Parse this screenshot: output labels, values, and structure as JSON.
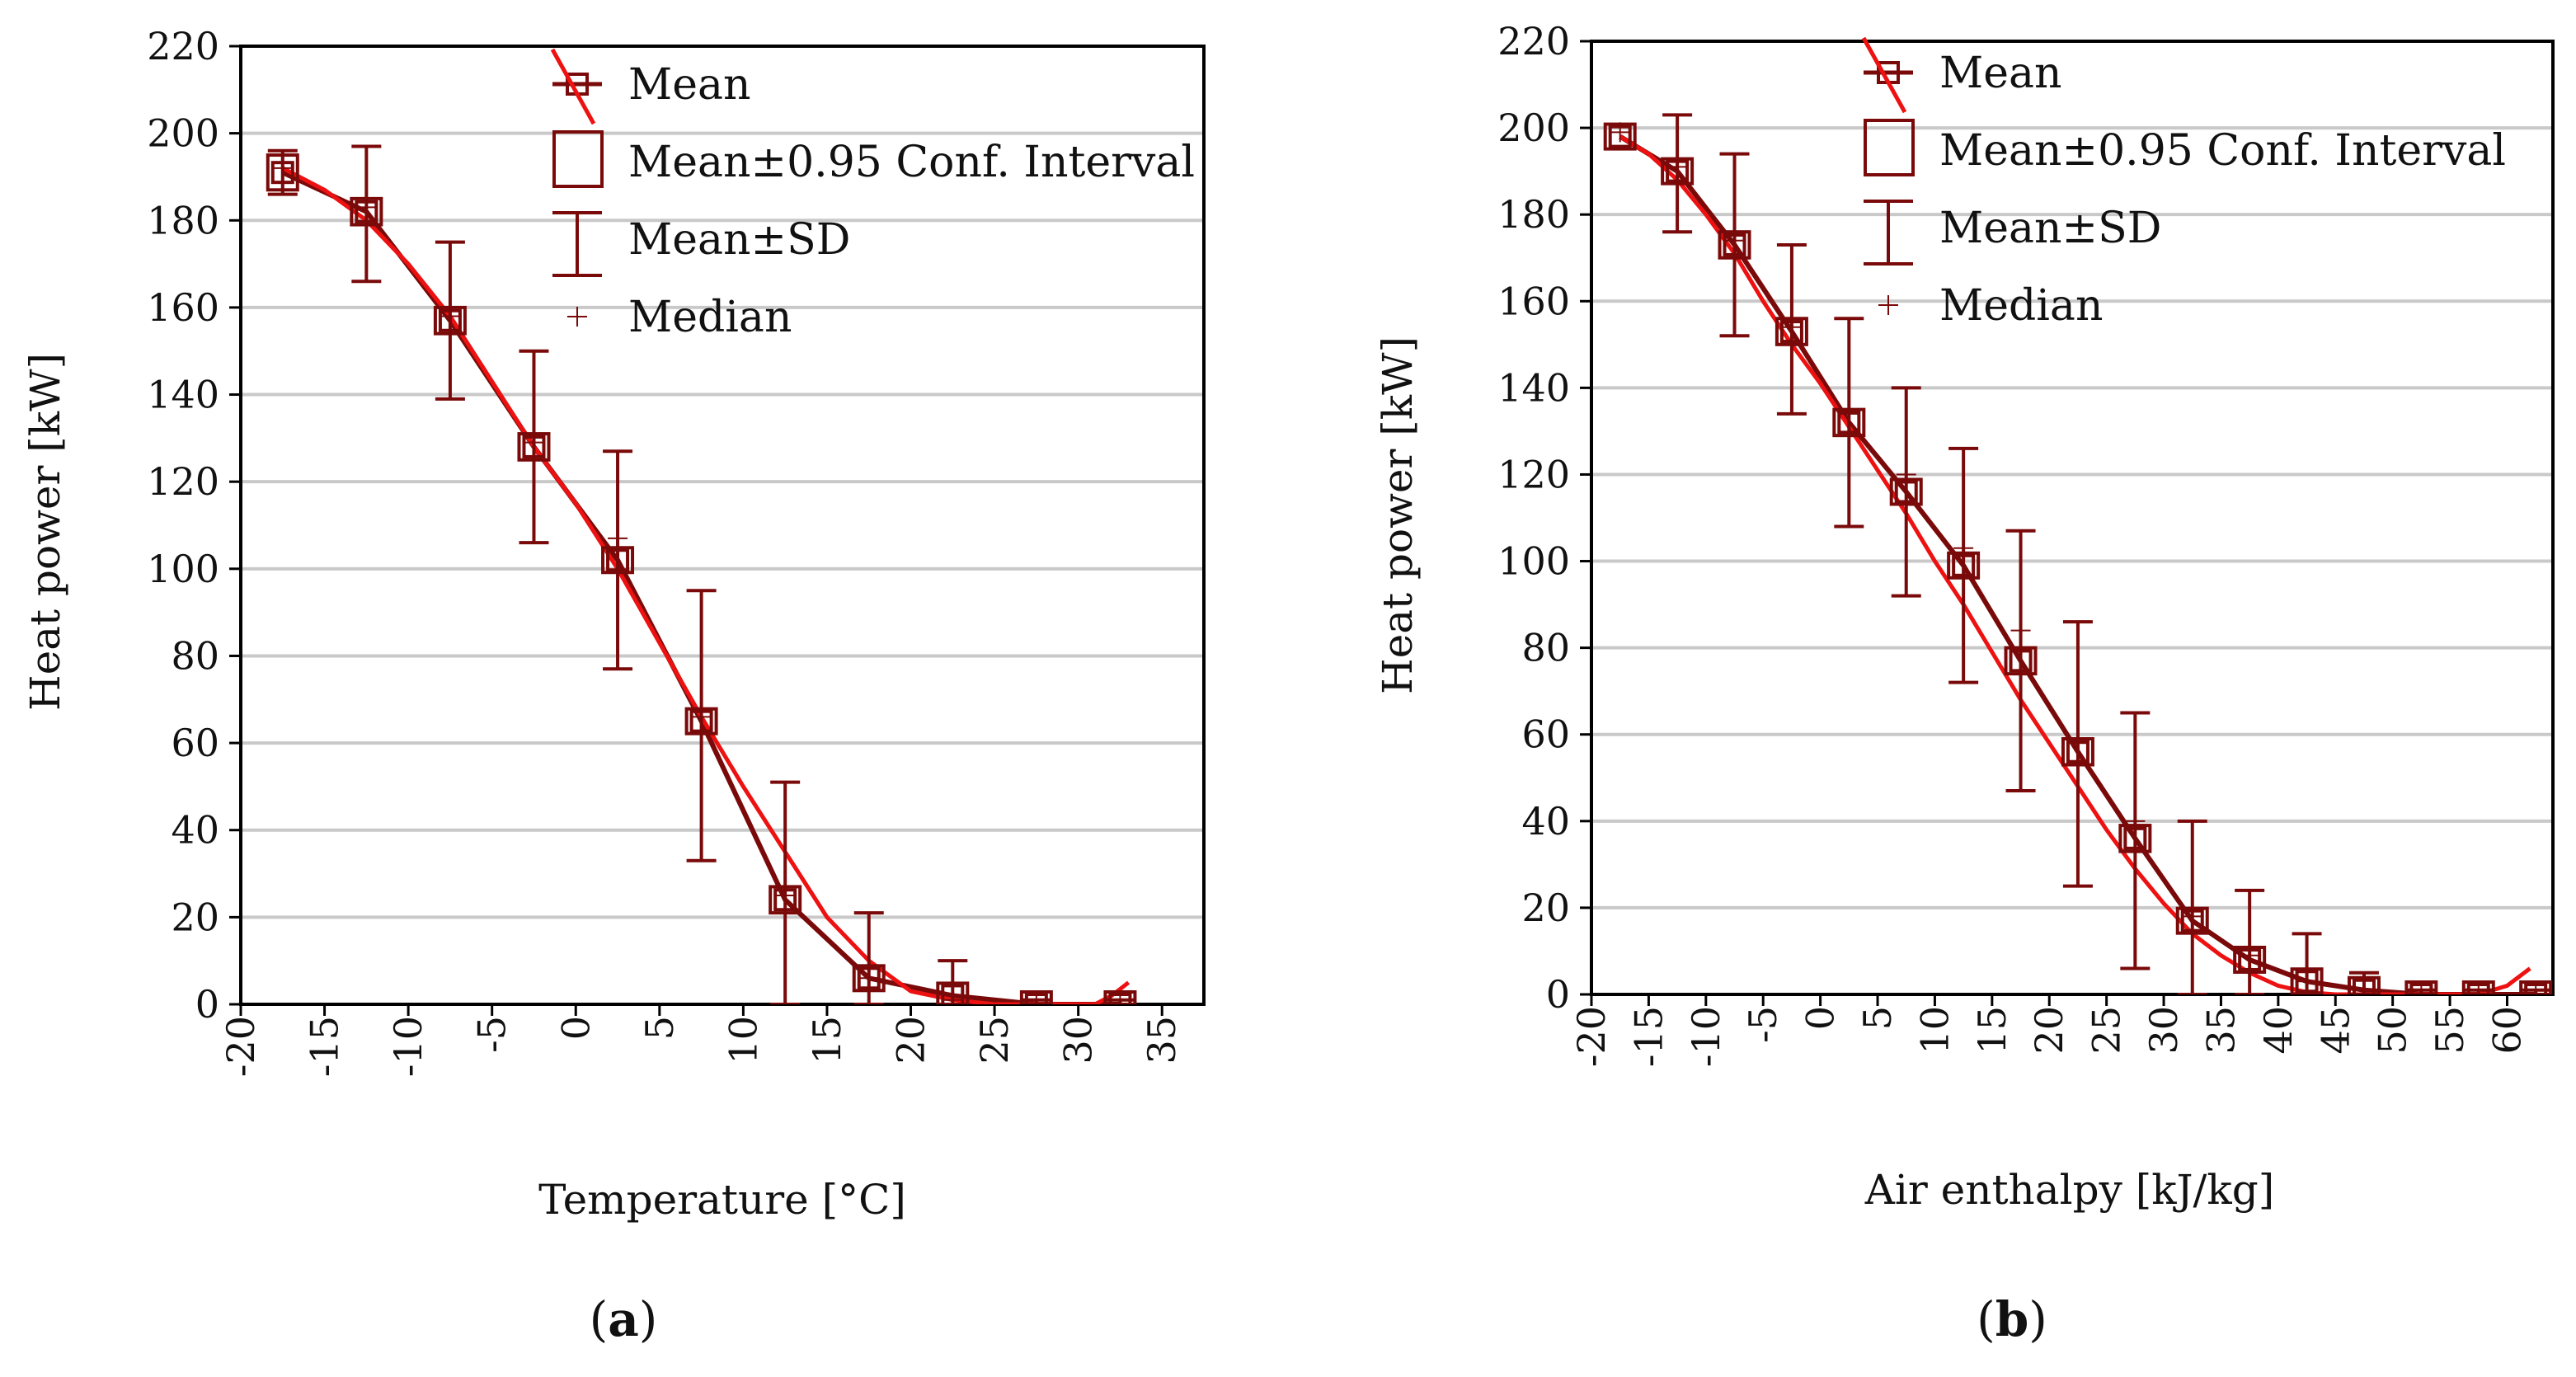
{
  "charts": [
    {
      "panel_label": "a",
      "chart_data": {
        "type": "line",
        "xlabel": "Temperature [°C]",
        "ylabel": "Heat power [kW]",
        "xlim": [
          -20,
          37.5
        ],
        "ylim": [
          0,
          220
        ],
        "x_ticks": [
          "-20",
          "-15",
          "-10",
          "-5",
          "0",
          "5",
          "10",
          "15",
          "20",
          "25",
          "30",
          "35"
        ],
        "y_ticks": [
          "0",
          "20",
          "40",
          "60",
          "80",
          "100",
          "120",
          "140",
          "160",
          "180",
          "200",
          "220"
        ],
        "grid": "horizontal",
        "legend_position": "top-right",
        "legend": [
          "Mean",
          "Mean±0.95 Conf. Interval",
          "Mean±SD",
          "Median"
        ],
        "series": [
          {
            "name": "Mean",
            "x": [
              -17.5,
              -12.5,
              -7.5,
              -2.5,
              2.5,
              7.5,
              12.5,
              17.5,
              22.5,
              27.5,
              32.5
            ],
            "values": [
              191,
              182,
              157,
              128,
              102,
              65,
              24,
              6,
              2,
              0,
              0
            ],
            "ci_low": [
              187,
              179,
              154,
              125,
              100,
              63,
              21,
              4,
              0,
              0,
              0
            ],
            "ci_high": [
              195,
              185,
              160,
              131,
              104,
              67,
              27,
              8,
              4,
              1,
              1
            ],
            "sd_low": [
              186,
              166,
              139,
              106,
              77,
              33,
              0,
              0,
              0,
              0,
              0
            ],
            "sd_high": [
              196,
              197,
              175,
              150,
              127,
              95,
              51,
              21,
              10,
              1,
              1
            ]
          },
          {
            "name": "Median",
            "x": [
              -17.5,
              -12.5,
              -7.5,
              -2.5,
              2.5,
              7.5,
              12.5,
              17.5,
              22.5,
              27.5,
              32.5
            ],
            "values": [
              192,
              183,
              158,
              129,
              107,
              66,
              25,
              6,
              1,
              0,
              0
            ]
          },
          {
            "name": "Fit",
            "x": [
              -17.5,
              -15,
              -12.5,
              -10,
              -7.5,
              -5,
              -2.5,
              0,
              2.5,
              5,
              7.5,
              10,
              12.5,
              15,
              17.5,
              20,
              22.5,
              25,
              27.5,
              30,
              31,
              32,
              33
            ],
            "values": [
              192,
              187,
              180,
              170,
              158,
              143,
              128,
              115,
              100,
              83,
              66,
              50,
              35,
              20,
              10,
              3,
              1,
              0,
              0,
              0,
              0,
              2,
              5
            ]
          }
        ]
      }
    },
    {
      "panel_label": "b",
      "chart_data": {
        "type": "line",
        "xlabel": "Air enthalpy [kJ/kg]",
        "ylabel": "Heat power [kW]",
        "xlim": [
          -20,
          64
        ],
        "ylim": [
          0,
          220
        ],
        "x_ticks": [
          "-20",
          "-15",
          "-10",
          "-5",
          "0",
          "5",
          "10",
          "15",
          "20",
          "25",
          "30",
          "35",
          "40",
          "45",
          "50",
          "55",
          "60"
        ],
        "y_ticks": [
          "0",
          "20",
          "40",
          "60",
          "80",
          "100",
          "120",
          "140",
          "160",
          "180",
          "200",
          "220"
        ],
        "grid": "horizontal",
        "legend_position": "top-right",
        "legend": [
          "Mean",
          "Mean±0.95 Conf. Interval",
          "Mean±SD",
          "Median"
        ],
        "series": [
          {
            "name": "Mean",
            "x": [
              -17.5,
              -12.5,
              -7.5,
              -2.5,
              2.5,
              7.5,
              12.5,
              17.5,
              22.5,
              27.5,
              32.5,
              37.5,
              42.5,
              47.5,
              52.5,
              57.5,
              62.5
            ],
            "values": [
              198,
              190,
              173,
              153,
              132,
              116,
              99,
              77,
              56,
              36,
              17,
              8,
              3,
              1,
              0,
              0,
              0
            ],
            "ci_low": [
              196,
              187,
              170,
              150,
              129,
              114,
              97,
              74,
              53,
              33,
              15,
              6,
              1,
              0,
              0,
              0,
              0
            ],
            "ci_high": [
              200,
              192,
              176,
              156,
              135,
              119,
              102,
              80,
              59,
              39,
              20,
              10,
              5,
              2,
              1,
              1,
              1
            ],
            "sd_low": [
              198,
              176,
              152,
              134,
              108,
              92,
              72,
              47,
              25,
              6,
              0,
              0,
              0,
              0,
              0,
              0,
              0
            ],
            "sd_high": [
              198,
              203,
              194,
              173,
              156,
              140,
              126,
              107,
              86,
              65,
              40,
              24,
              14,
              5,
              1,
              1,
              1
            ]
          },
          {
            "name": "Median",
            "x": [
              -17.5,
              -12.5,
              -7.5,
              -2.5,
              2.5,
              7.5,
              12.5,
              17.5,
              22.5,
              27.5,
              32.5,
              37.5,
              42.5,
              47.5,
              52.5,
              57.5,
              62.5
            ],
            "values": [
              199,
              191,
              174,
              154,
              134,
              120,
              103,
              84,
              58,
              40,
              18,
              9,
              3,
              1,
              0,
              0,
              0
            ]
          },
          {
            "name": "Fit",
            "x": [
              -17.5,
              -15,
              -12.5,
              -10,
              -7.5,
              -5,
              -2.5,
              0,
              2.5,
              5,
              7.5,
              10,
              12.5,
              15,
              17.5,
              20,
              22.5,
              25,
              27.5,
              30,
              32.5,
              35,
              37.5,
              40,
              42.5,
              45,
              47.5,
              50,
              52.5,
              55,
              57.5,
              60,
              62
            ],
            "values": [
              198,
              194,
              188,
              180,
              171,
              160,
              150,
              141,
              131,
              121,
              111,
              100,
              90,
              79,
              68,
              58,
              48,
              38,
              29,
              21,
              14,
              9,
              5,
              2,
              0.5,
              0,
              0,
              0,
              0,
              0,
              0,
              2,
              6
            ]
          }
        ]
      }
    }
  ]
}
